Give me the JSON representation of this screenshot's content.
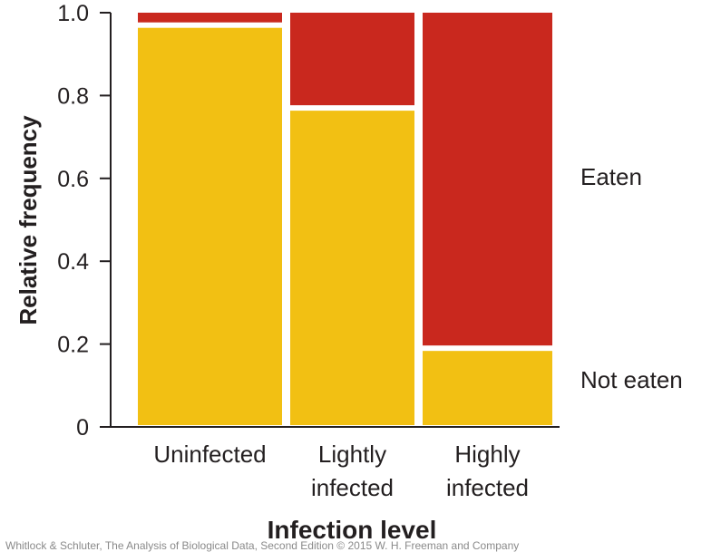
{
  "chart_data": {
    "type": "bar",
    "subtype": "stacked-mosaic",
    "xlabel": "Infection level",
    "ylabel": "Relative frequency",
    "ylim": [
      0,
      1.0
    ],
    "yticks": [
      "0",
      "0.2",
      "0.4",
      "0.6",
      "0.8",
      "1.0"
    ],
    "categories": [
      {
        "line1": "Uninfected",
        "line2": ""
      },
      {
        "line1": "Lightly",
        "line2": "infected"
      },
      {
        "line1": "Highly",
        "line2": "infected"
      }
    ],
    "series": [
      {
        "name": "Not eaten",
        "color": "#f2c013",
        "values": [
          0.97,
          0.77,
          0.19
        ]
      },
      {
        "name": "Eaten",
        "color": "#c9281e",
        "values": [
          0.03,
          0.23,
          0.81
        ]
      }
    ],
    "legend_placement": "right",
    "grid": false
  },
  "credit": "Whitlock & Schluter, The Analysis of Biological Data, Second Edition © 2015 W. H. Freeman and Company"
}
